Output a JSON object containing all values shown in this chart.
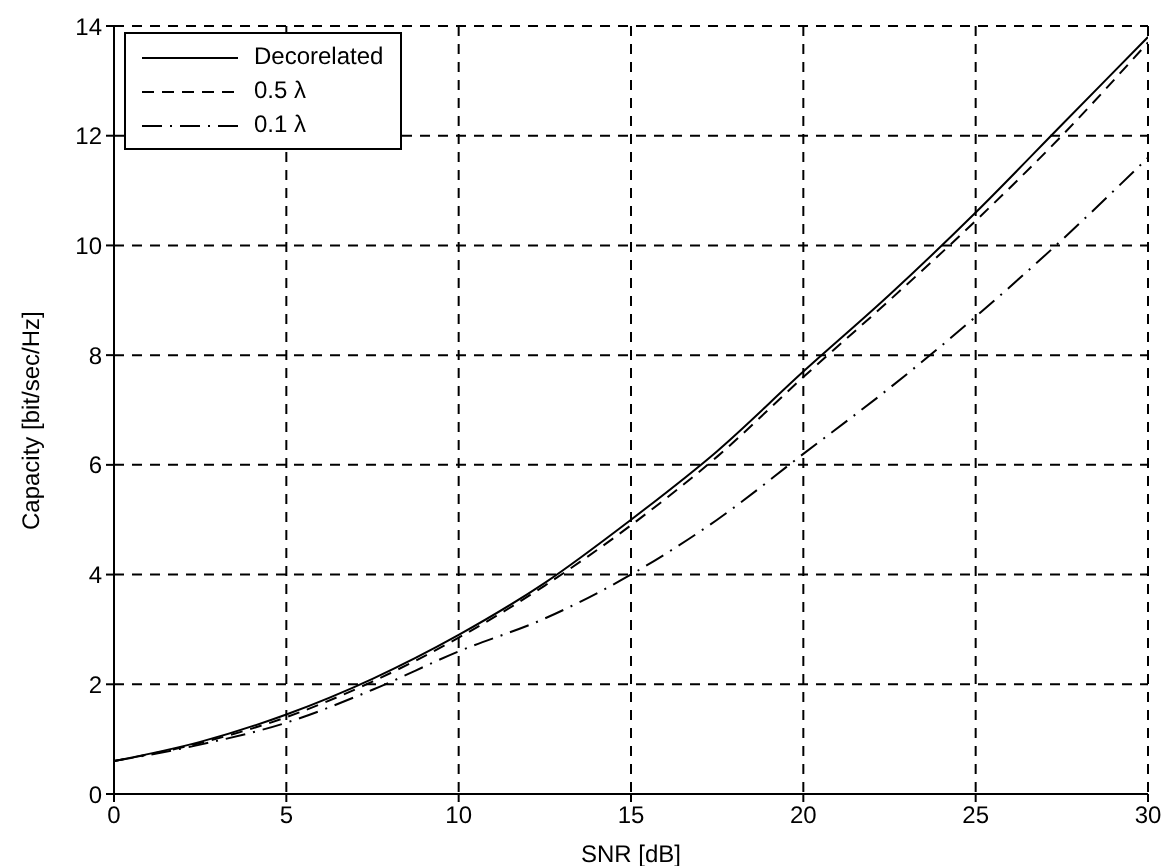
{
  "chart_data": {
    "type": "line",
    "xlabel": "SNR [dB]",
    "ylabel": "Capacity [bit/sec/Hz]",
    "x": [
      0,
      2.5,
      5,
      7.5,
      10,
      12.5,
      15,
      17.5,
      20,
      22.5,
      25,
      27.5,
      30
    ],
    "series": [
      {
        "name": "Decorelated",
        "color": "#000000",
        "line_style": "solid",
        "values": [
          0.6,
          0.95,
          1.45,
          2.1,
          2.9,
          3.85,
          5.0,
          6.25,
          7.7,
          9.1,
          10.6,
          12.2,
          13.8
        ]
      },
      {
        "name": "0.5 λ",
        "color": "#000000",
        "line_style": "dashed",
        "values": [
          0.6,
          0.93,
          1.4,
          2.05,
          2.85,
          3.8,
          4.9,
          6.15,
          7.6,
          9.0,
          10.45,
          12.0,
          13.7
        ]
      },
      {
        "name": "0.1 λ",
        "color": "#000000",
        "line_style": "dashdot",
        "values": [
          0.6,
          0.9,
          1.3,
          1.9,
          2.6,
          3.2,
          4.0,
          5.0,
          6.2,
          7.4,
          8.7,
          10.1,
          11.6
        ]
      }
    ],
    "xlim": [
      0,
      30
    ],
    "xticks": [
      0,
      5,
      10,
      15,
      20,
      25,
      30
    ],
    "ylim": [
      0,
      14
    ],
    "yticks": [
      0,
      2,
      4,
      6,
      8,
      10,
      12,
      14
    ],
    "grid": true,
    "legend": "top left",
    "marker": "none"
  }
}
